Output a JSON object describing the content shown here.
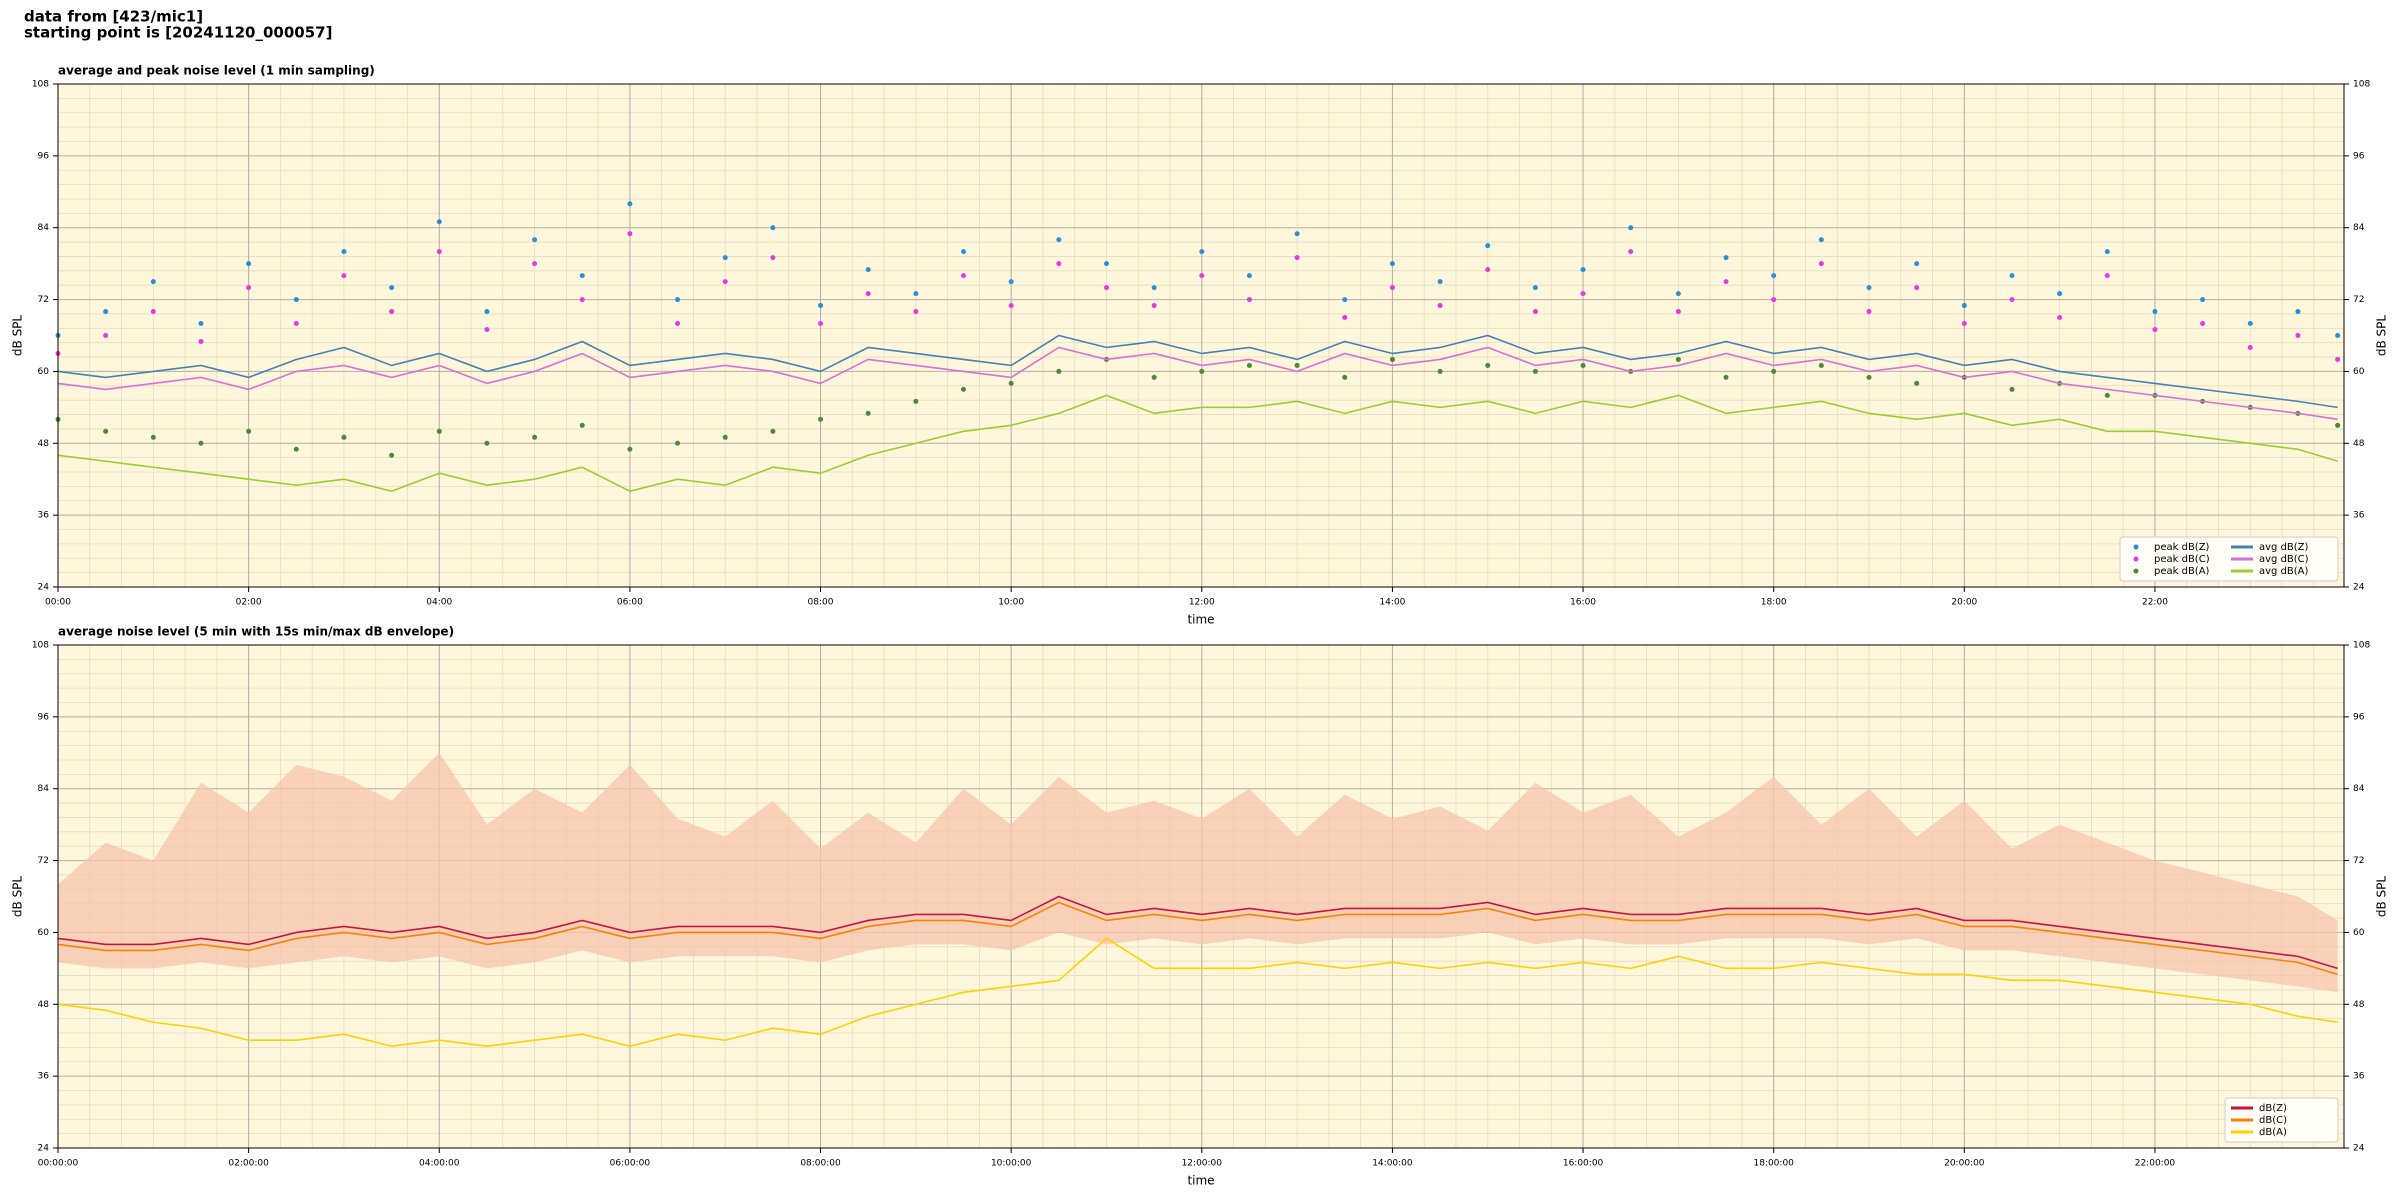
{
  "header": {
    "lines": [
      "data from [423/mic1]",
      "starting point is [20241120_000057]"
    ]
  },
  "chart_data": [
    {
      "type": "line",
      "title": "average and peak noise level (1 min sampling)",
      "xlabel": "time",
      "ylabel": "dB SPL",
      "x": [
        "00:00",
        "00:30",
        "01:00",
        "01:30",
        "02:00",
        "02:30",
        "03:00",
        "03:30",
        "04:00",
        "04:30",
        "05:00",
        "05:30",
        "06:00",
        "06:30",
        "07:00",
        "07:30",
        "08:00",
        "08:30",
        "09:00",
        "09:30",
        "10:00",
        "10:30",
        "11:00",
        "11:30",
        "12:00",
        "12:30",
        "13:00",
        "13:30",
        "14:00",
        "14:30",
        "15:00",
        "15:30",
        "16:00",
        "16:30",
        "17:00",
        "17:30",
        "18:00",
        "18:30",
        "19:00",
        "19:30",
        "20:00",
        "20:30",
        "21:00",
        "21:30",
        "22:00",
        "22:30",
        "23:00",
        "23:30",
        "23:55"
      ],
      "xlim": [
        "00:00",
        "23:59"
      ],
      "xticks": [
        "00:00",
        "02:00",
        "04:00",
        "06:00",
        "08:00",
        "10:00",
        "12:00",
        "14:00",
        "16:00",
        "18:00",
        "20:00",
        "22:00"
      ],
      "ylim": [
        24,
        108
      ],
      "yticks": [
        24,
        36,
        48,
        60,
        72,
        84,
        96,
        108
      ],
      "grid": true,
      "minor_grid": true,
      "legend": "lower right",
      "background": "#fff7db",
      "series": [
        {
          "name": "peak dB(Z)",
          "kind": "scatter",
          "color": "#2a8fd8",
          "values": [
            66,
            70,
            75,
            68,
            78,
            72,
            80,
            74,
            85,
            70,
            82,
            76,
            88,
            72,
            79,
            84,
            71,
            77,
            73,
            80,
            75,
            82,
            78,
            74,
            80,
            76,
            83,
            72,
            78,
            75,
            81,
            74,
            77,
            84,
            73,
            79,
            76,
            82,
            74,
            78,
            71,
            76,
            73,
            80,
            70,
            72,
            68,
            70,
            66
          ]
        },
        {
          "name": "peak dB(C)",
          "kind": "scatter",
          "color": "#e838e0",
          "values": [
            63,
            66,
            70,
            65,
            74,
            68,
            76,
            70,
            80,
            67,
            78,
            72,
            83,
            68,
            75,
            79,
            68,
            73,
            70,
            76,
            71,
            78,
            74,
            71,
            76,
            72,
            79,
            69,
            74,
            71,
            77,
            70,
            73,
            80,
            70,
            75,
            72,
            78,
            70,
            74,
            68,
            72,
            69,
            76,
            67,
            68,
            64,
            66,
            62
          ]
        },
        {
          "name": "peak dB(A)",
          "kind": "scatter",
          "color": "#4a8a3a",
          "values": [
            52,
            50,
            49,
            48,
            50,
            47,
            49,
            46,
            50,
            48,
            49,
            51,
            47,
            48,
            49,
            50,
            52,
            53,
            55,
            57,
            58,
            60,
            62,
            59,
            60,
            61,
            61,
            59,
            62,
            60,
            61,
            60,
            61,
            60,
            62,
            59,
            60,
            61,
            59,
            58,
            59,
            57,
            58,
            56,
            56,
            55,
            54,
            53,
            51
          ]
        },
        {
          "name": "avg dB(Z)",
          "kind": "line",
          "color": "#4682b4",
          "values": [
            60,
            59,
            60,
            61,
            59,
            62,
            64,
            61,
            63,
            60,
            62,
            65,
            61,
            62,
            63,
            62,
            60,
            64,
            63,
            62,
            61,
            66,
            64,
            65,
            63,
            64,
            62,
            65,
            63,
            64,
            66,
            63,
            64,
            62,
            63,
            65,
            63,
            64,
            62,
            63,
            61,
            62,
            60,
            59,
            58,
            57,
            56,
            55,
            54
          ]
        },
        {
          "name": "avg dB(C)",
          "kind": "line",
          "color": "#da70d6",
          "values": [
            58,
            57,
            58,
            59,
            57,
            60,
            61,
            59,
            61,
            58,
            60,
            63,
            59,
            60,
            61,
            60,
            58,
            62,
            61,
            60,
            59,
            64,
            62,
            63,
            61,
            62,
            60,
            63,
            61,
            62,
            64,
            61,
            62,
            60,
            61,
            63,
            61,
            62,
            60,
            61,
            59,
            60,
            58,
            57,
            56,
            55,
            54,
            53,
            52
          ]
        },
        {
          "name": "avg dB(A)",
          "kind": "line",
          "color": "#9acd32",
          "values": [
            46,
            45,
            44,
            43,
            42,
            41,
            42,
            40,
            43,
            41,
            42,
            44,
            40,
            42,
            41,
            44,
            43,
            46,
            48,
            50,
            51,
            53,
            56,
            53,
            54,
            54,
            55,
            53,
            55,
            54,
            55,
            53,
            55,
            54,
            56,
            53,
            54,
            55,
            53,
            52,
            53,
            51,
            52,
            50,
            50,
            49,
            48,
            47,
            45
          ]
        }
      ]
    },
    {
      "type": "line",
      "title": "average noise level (5 min with 15s min/max dB envelope)",
      "xlabel": "time",
      "ylabel": "dB SPL",
      "x": [
        "00:00:00",
        "00:30:00",
        "01:00:00",
        "01:30:00",
        "02:00:00",
        "02:30:00",
        "03:00:00",
        "03:30:00",
        "04:00:00",
        "04:30:00",
        "05:00:00",
        "05:30:00",
        "06:00:00",
        "06:30:00",
        "07:00:00",
        "07:30:00",
        "08:00:00",
        "08:30:00",
        "09:00:00",
        "09:30:00",
        "10:00:00",
        "10:30:00",
        "11:00:00",
        "11:30:00",
        "12:00:00",
        "12:30:00",
        "13:00:00",
        "13:30:00",
        "14:00:00",
        "14:30:00",
        "15:00:00",
        "15:30:00",
        "16:00:00",
        "16:30:00",
        "17:00:00",
        "17:30:00",
        "18:00:00",
        "18:30:00",
        "19:00:00",
        "19:30:00",
        "20:00:00",
        "20:30:00",
        "21:00:00",
        "21:30:00",
        "22:00:00",
        "22:30:00",
        "23:00:00",
        "23:30:00",
        "23:55:00"
      ],
      "xlim": [
        "00:00:00",
        "23:59:00"
      ],
      "xticks": [
        "00:00:00",
        "02:00:00",
        "04:00:00",
        "06:00:00",
        "08:00:00",
        "10:00:00",
        "12:00:00",
        "14:00:00",
        "16:00:00",
        "18:00:00",
        "20:00:00",
        "22:00:00"
      ],
      "ylim": [
        24,
        108
      ],
      "yticks": [
        24,
        36,
        48,
        60,
        72,
        84,
        96,
        108
      ],
      "grid": true,
      "minor_grid": true,
      "legend": "lower right",
      "background": "#fff7db",
      "envelope": {
        "color": "#f6c4ac",
        "min": [
          55,
          54,
          54,
          55,
          54,
          55,
          56,
          55,
          56,
          54,
          55,
          57,
          55,
          56,
          56,
          56,
          55,
          57,
          58,
          58,
          57,
          60,
          58,
          59,
          58,
          59,
          58,
          59,
          59,
          59,
          60,
          58,
          59,
          58,
          58,
          59,
          59,
          59,
          58,
          59,
          57,
          57,
          56,
          55,
          54,
          53,
          52,
          51,
          50
        ],
        "max": [
          68,
          75,
          72,
          85,
          80,
          88,
          86,
          82,
          90,
          78,
          84,
          80,
          88,
          79,
          76,
          82,
          74,
          80,
          75,
          84,
          78,
          86,
          80,
          82,
          79,
          84,
          76,
          83,
          79,
          81,
          77,
          85,
          80,
          83,
          76,
          80,
          86,
          78,
          84,
          76,
          82,
          74,
          78,
          75,
          72,
          70,
          68,
          66,
          62
        ]
      },
      "series": [
        {
          "name": "dB(Z)",
          "kind": "line",
          "color": "#c8143c",
          "values": [
            59,
            58,
            58,
            59,
            58,
            60,
            61,
            60,
            61,
            59,
            60,
            62,
            60,
            61,
            61,
            61,
            60,
            62,
            63,
            63,
            62,
            66,
            63,
            64,
            63,
            64,
            63,
            64,
            64,
            64,
            65,
            63,
            64,
            63,
            63,
            64,
            64,
            64,
            63,
            64,
            62,
            62,
            61,
            60,
            59,
            58,
            57,
            56,
            54
          ]
        },
        {
          "name": "dB(C)",
          "kind": "line",
          "color": "#ff8000",
          "values": [
            58,
            57,
            57,
            58,
            57,
            59,
            60,
            59,
            60,
            58,
            59,
            61,
            59,
            60,
            60,
            60,
            59,
            61,
            62,
            62,
            61,
            65,
            62,
            63,
            62,
            63,
            62,
            63,
            63,
            63,
            64,
            62,
            63,
            62,
            62,
            63,
            63,
            63,
            62,
            63,
            61,
            61,
            60,
            59,
            58,
            57,
            56,
            55,
            53
          ]
        },
        {
          "name": "dB(A)",
          "kind": "line",
          "color": "#ffd200",
          "values": [
            48,
            47,
            45,
            44,
            42,
            42,
            43,
            41,
            42,
            41,
            42,
            43,
            41,
            43,
            42,
            44,
            43,
            46,
            48,
            50,
            51,
            52,
            59,
            54,
            54,
            54,
            55,
            54,
            55,
            54,
            55,
            54,
            55,
            54,
            56,
            54,
            54,
            55,
            54,
            53,
            53,
            52,
            52,
            51,
            50,
            49,
            48,
            46,
            45
          ]
        }
      ]
    }
  ]
}
